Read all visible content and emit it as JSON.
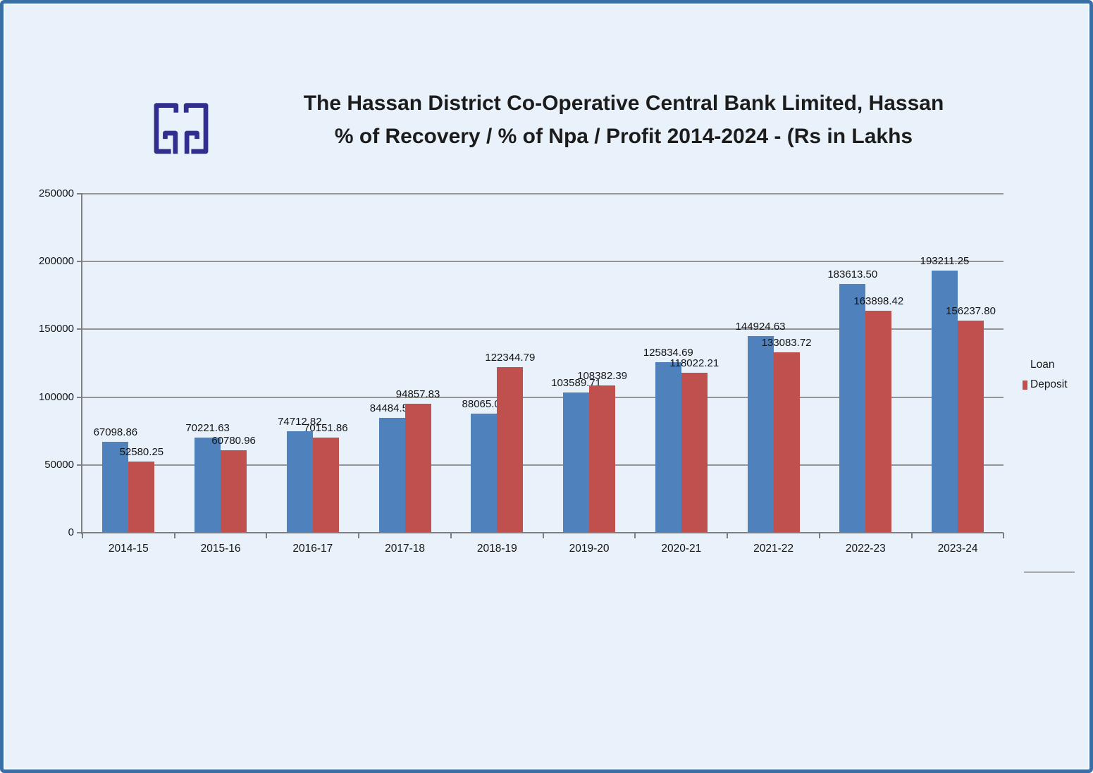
{
  "frame": {
    "background_color": "#e9f2fb",
    "border_color": "#3a6fa5"
  },
  "header": {
    "logo_color": "#312e8e",
    "title_line1": "The Hassan District Co-Operative Central Bank Limited, Hassan",
    "title_line2": "% of Recovery / % of Npa / Profit 2014-2024 - (Rs in Lakhs"
  },
  "legend": {
    "position": "right",
    "items": [
      {
        "label": "Loan",
        "color": "#4f81bd",
        "swatch_visible": false
      },
      {
        "label": "Deposit",
        "color": "#c0504d",
        "swatch_visible": true
      }
    ]
  },
  "chart_data": {
    "type": "bar",
    "title": "The Hassan District Co-Operative Central Bank Limited, Hassan % of Recovery / % of Npa / Profit 2014-2024 - (Rs in Lakhs",
    "categories": [
      "2014-15",
      "2015-16",
      "2016-17",
      "2017-18",
      "2018-19",
      "2019-20",
      "2020-21",
      "2021-22",
      "2022-23",
      "2023-24"
    ],
    "series": [
      {
        "name": "Loan",
        "color": "#4f81bd",
        "values": [
          67098.86,
          70221.63,
          74712.82,
          84484.57,
          88065.08,
          103589.71,
          125834.69,
          144924.63,
          183613.5,
          193211.25
        ],
        "labels": [
          "67098.86",
          "70221.63",
          "74712.82",
          "84484.57",
          "88065.08",
          "103589.71",
          "125834.69",
          "144924.63",
          "183613.50",
          "193211.25"
        ]
      },
      {
        "name": "Deposit",
        "color": "#c0504d",
        "values": [
          52580.25,
          60780.96,
          70151.86,
          94857.83,
          122344.79,
          108382.39,
          118022.21,
          133083.72,
          163898.42,
          156237.8
        ],
        "labels": [
          "52580.25",
          "60780.96",
          "70151.86",
          "94857.83",
          "122344.79",
          "108382.39",
          "118022.21",
          "133083.72",
          "163898.42",
          "156237.80"
        ]
      }
    ],
    "ylim": [
      0,
      250000
    ],
    "yticks": [
      {
        "value": 0,
        "label": "0"
      },
      {
        "value": 50000,
        "label": "50000"
      },
      {
        "value": 100000,
        "label": "100000"
      },
      {
        "value": 150000,
        "label": "150000"
      },
      {
        "value": 200000,
        "label": "200000"
      },
      {
        "value": 250000,
        "label": "250000"
      }
    ],
    "grid": true,
    "legend_position": "right",
    "value_labels": true
  }
}
